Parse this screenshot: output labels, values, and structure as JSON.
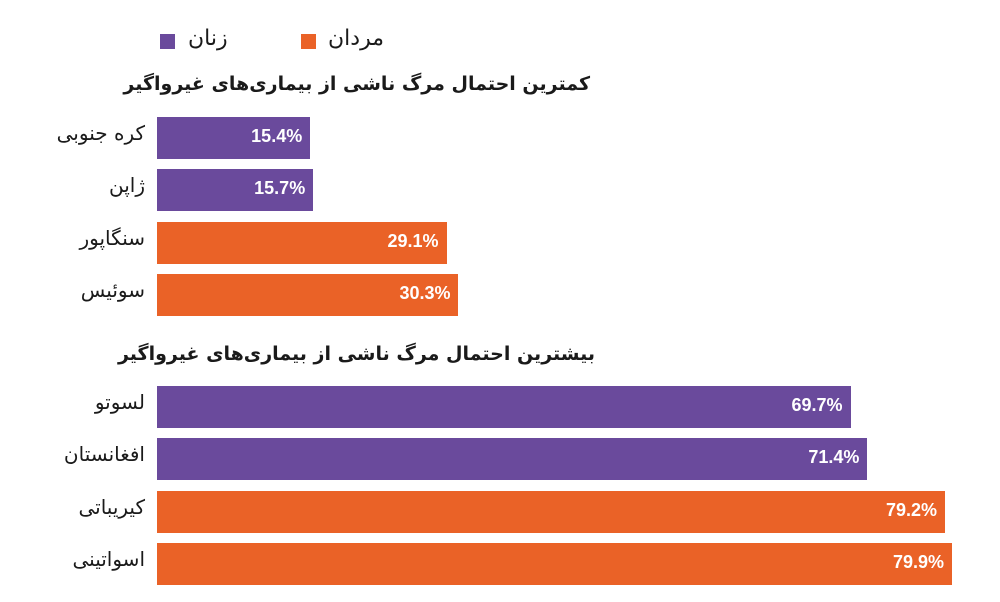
{
  "chart_data": {
    "type": "bar",
    "orientation": "horizontal",
    "legend": [
      {
        "name": "زنان",
        "color": "#6a4a9c"
      },
      {
        "name": "مردان",
        "color": "#ea6227"
      }
    ],
    "legend_placement": "top-left",
    "grid": false,
    "xlim": [
      0,
      80
    ],
    "groups": [
      {
        "title": "کمترین احتمال مرگ ناشی از بیماری‌های غیرواگیر",
        "categories": [
          "کره جنوبی",
          "ژاپن",
          "سنگاپور",
          "سوئیس"
        ],
        "values": [
          15.4,
          15.7,
          29.1,
          30.3
        ],
        "labels": [
          "15.4%",
          "15.7%",
          "29.1%",
          "30.3%"
        ],
        "series": [
          "زنان",
          "زنان",
          "مردان",
          "مردان"
        ]
      },
      {
        "title": "بیشترین احتمال مرگ ناشی از بیماری‌های غیرواگیر",
        "categories": [
          "لسوتو",
          "افغانستان",
          "کیریباتی",
          "اسواتینی"
        ],
        "values": [
          69.7,
          71.4,
          79.2,
          79.9
        ],
        "labels": [
          "69.7%",
          "71.4%",
          "79.2%",
          "79.9%"
        ],
        "series": [
          "زنان",
          "زنان",
          "مردان",
          "مردان"
        ]
      }
    ]
  }
}
